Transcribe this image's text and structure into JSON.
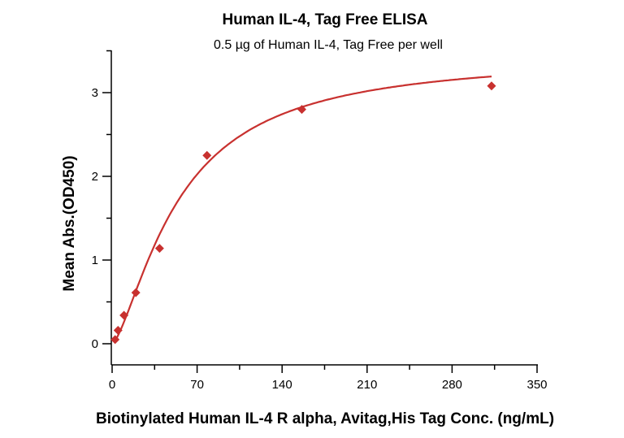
{
  "chart": {
    "title": "Human IL-4, Tag Free ELISA",
    "subtitle": "0.5 µg of Human IL-4, Tag Free per well",
    "xlabel": "Biotinylated Human IL-4 R alpha, Avitag,His Tag Conc. (ng/mL)",
    "ylabel": "Mean Abs.(OD450)",
    "colors": {
      "series": "#C8312F",
      "axis": "#000000"
    }
  },
  "chart_data": {
    "type": "scatter",
    "title": "Human IL-4, Tag Free ELISA",
    "subtitle": "0.5 µg of Human IL-4, Tag Free per well",
    "xlabel": "Biotinylated Human IL-4 R alpha, Avitag,His Tag Conc. (ng/mL)",
    "ylabel": "Mean Abs.(OD450)",
    "xlim": [
      0,
      350
    ],
    "ylim": [
      0,
      3.5
    ],
    "x_ticks": [
      0,
      70,
      140,
      210,
      280,
      350
    ],
    "y_ticks": [
      0,
      1,
      2,
      3
    ],
    "grid": false,
    "legend": null,
    "series": [
      {
        "name": "Human IL-4, Tag Free",
        "marker": "diamond",
        "fit": "4-parameter logistic curve",
        "x": [
          2.44,
          4.88,
          9.77,
          19.53,
          39.06,
          78.13,
          156.25,
          312.5
        ],
        "y": [
          0.05,
          0.16,
          0.34,
          0.61,
          1.14,
          2.25,
          2.8,
          3.08
        ]
      }
    ]
  }
}
